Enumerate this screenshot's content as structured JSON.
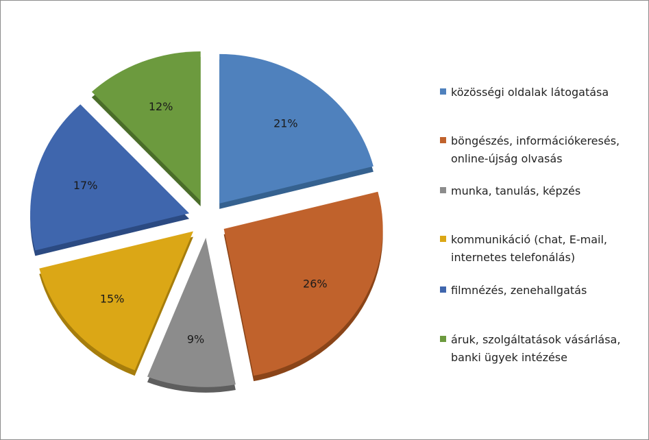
{
  "chart_data": {
    "type": "pie",
    "style": "exploded-3d",
    "title": "",
    "unit": "%",
    "legend_position": "right",
    "slices": [
      {
        "label": "közösségi oldalak látogatása",
        "value": 21,
        "value_label": "21%",
        "color": "#4f81bd",
        "dark": "#35618f"
      },
      {
        "label": "böngészés, információkeresés, online-újság olvasás",
        "value": 26,
        "value_label": "26%",
        "color": "#c0622c",
        "dark": "#8a4418"
      },
      {
        "label": "munka, tanulás, képzés",
        "value": 9,
        "value_label": "9%",
        "color": "#8c8c8c",
        "dark": "#5e5e5e"
      },
      {
        "label": "kommunikáció (chat, E-mail, internetes telefonálás)",
        "value": 15,
        "value_label": "15%",
        "color": "#dba716",
        "dark": "#a67d0c"
      },
      {
        "label": "filmnézés, zenehallgatás",
        "value": 17,
        "value_label": "17%",
        "color": "#3f66ad",
        "dark": "#2b4a82"
      },
      {
        "label": "áruk, szolgáltatások vásárlása, banki ügyek intézése",
        "value": 12,
        "value_label": "12%",
        "color": "#6c9a3e",
        "dark": "#4a6d29"
      }
    ]
  },
  "legend": {
    "items": [
      {
        "line1": "közösségi oldalak látogatása",
        "line2": ""
      },
      {
        "line1": "böngészés, információkeresés,",
        "line2": "online-újság olvasás"
      },
      {
        "line1": "munka, tanulás, képzés",
        "line2": ""
      },
      {
        "line1": "kommunikáció (chat, E-mail,",
        "line2": "internetes telefonálás)"
      },
      {
        "line1": "filmnézés, zenehallgatás",
        "line2": ""
      },
      {
        "line1": "áruk, szolgáltatások vásárlása,",
        "line2": "banki ügyek intézése"
      }
    ]
  }
}
